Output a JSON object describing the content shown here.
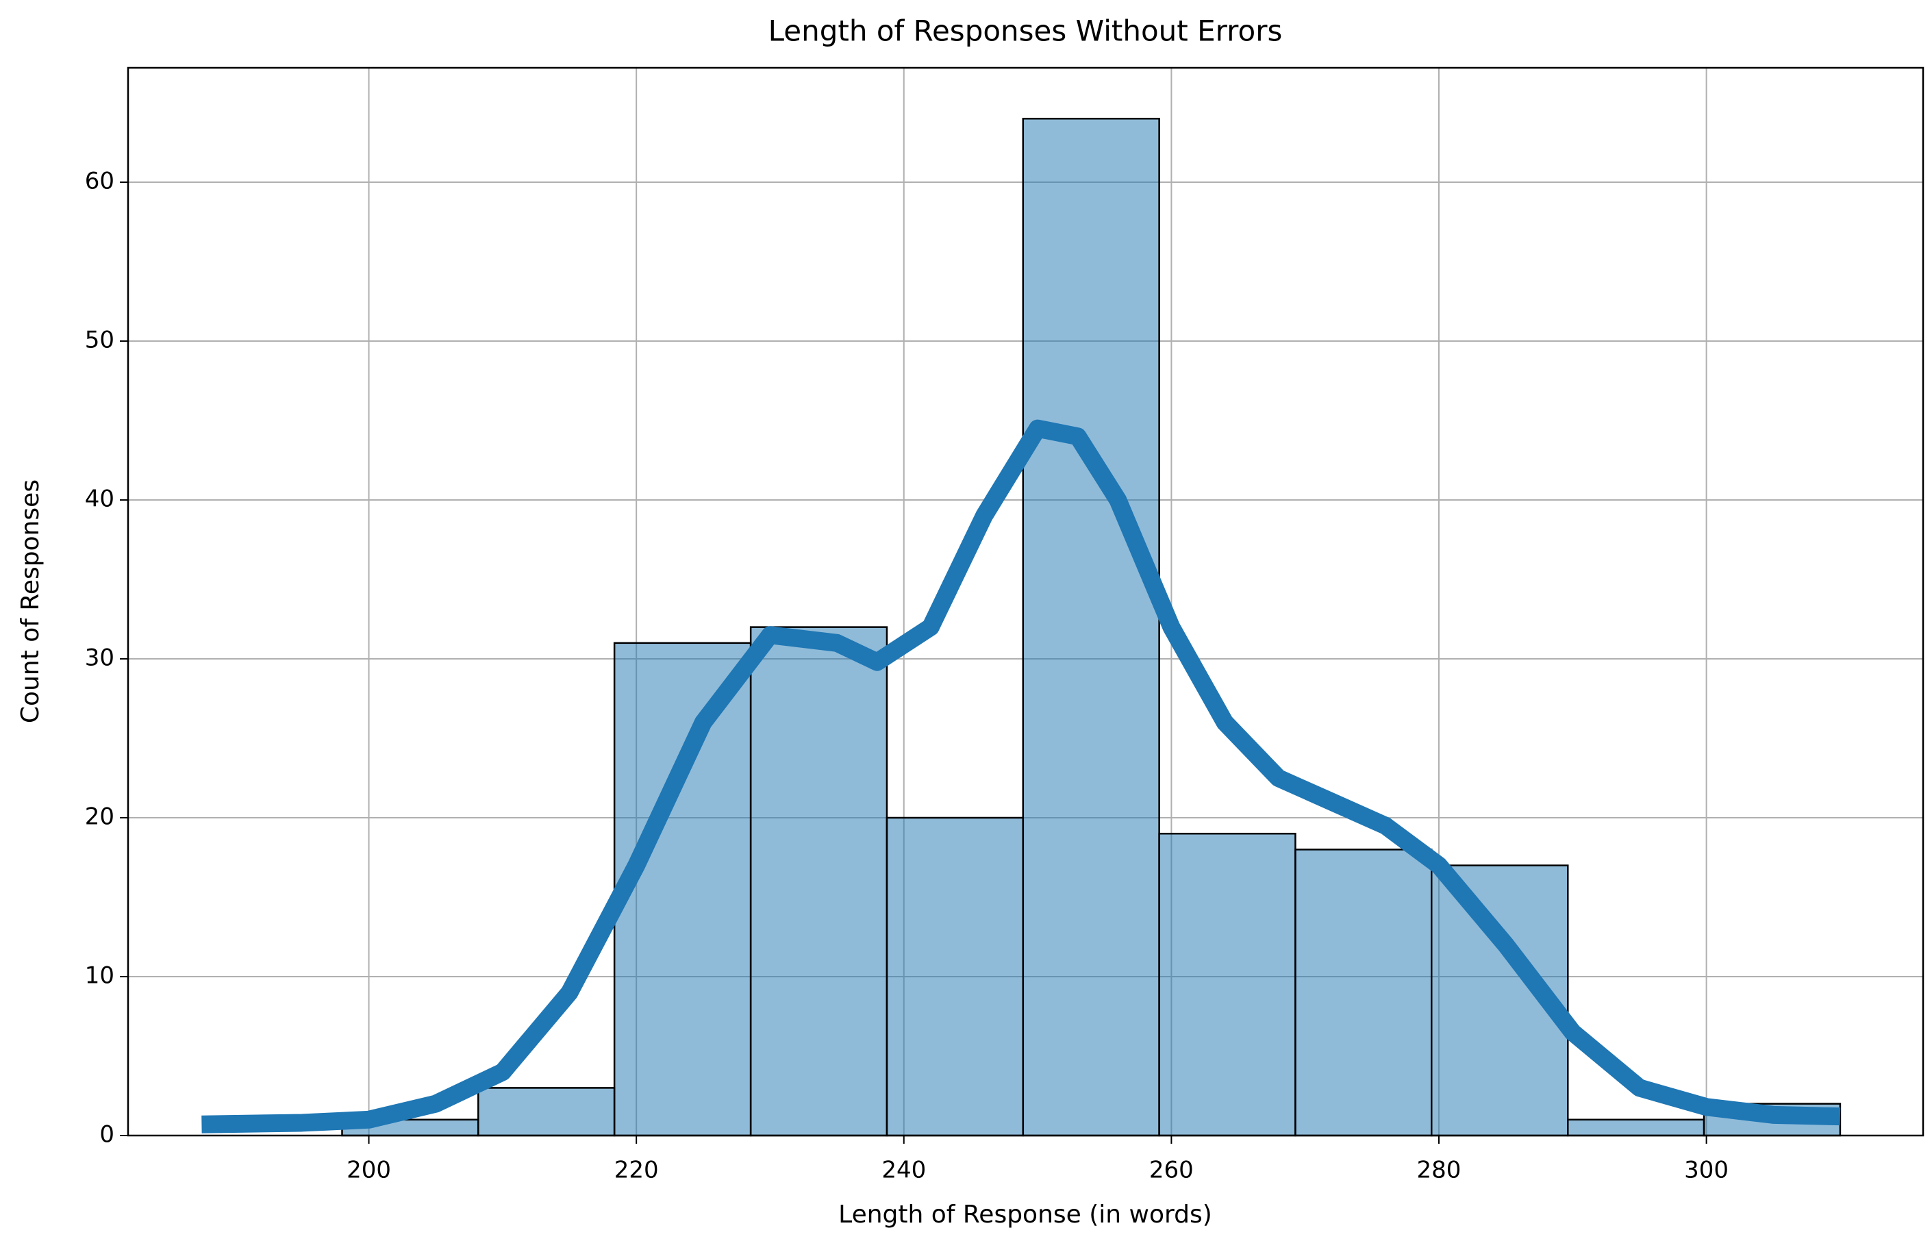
{
  "chart_data": {
    "type": "histogram",
    "title": "Length of Responses Without Errors",
    "x_label": "Length of Response (in words)",
    "y_label": "Count of Responses",
    "bins": [
      198,
      208.18,
      218.36,
      228.55,
      238.73,
      248.91,
      259.09,
      269.27,
      279.45,
      289.64,
      299.82,
      310
    ],
    "counts": [
      1,
      3,
      31,
      32,
      20,
      64,
      19,
      18,
      17,
      1,
      2
    ],
    "color": "#1f77b4",
    "kde": {
      "color": "#1f77b4",
      "x": [
        187.5,
        195,
        200,
        205,
        210,
        215,
        220,
        225,
        230,
        235,
        238,
        242,
        246,
        250,
        253,
        256,
        260,
        264,
        268,
        272,
        276,
        280,
        285,
        290,
        295,
        300,
        305,
        310
      ],
      "values": [
        0.7,
        0.8,
        1,
        2,
        4,
        9,
        17,
        26,
        31.5,
        31,
        29.8,
        32,
        39,
        44.5,
        44,
        40,
        32,
        26,
        22.5,
        21,
        19.5,
        17,
        12,
        6.5,
        3,
        1.8,
        1.3,
        1.2
      ]
    },
    "xlim": [
      182,
      316.2
    ],
    "ylim": [
      0,
      67.2
    ],
    "xticks": [
      200,
      220,
      240,
      260,
      280,
      300
    ],
    "yticks": [
      0,
      10,
      20,
      30,
      40,
      50,
      60
    ],
    "grid": true
  }
}
